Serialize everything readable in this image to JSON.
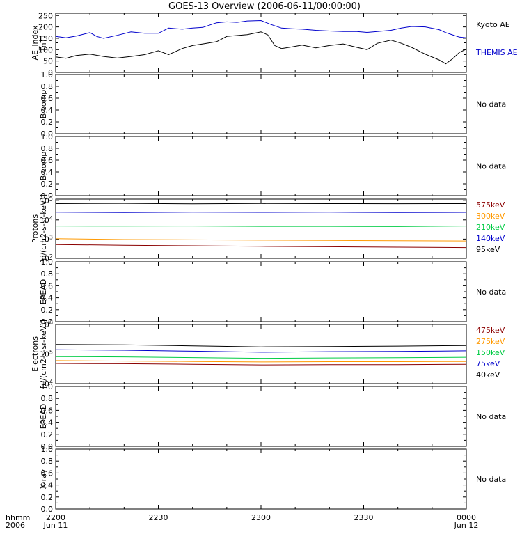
{
  "title": "GOES-13 Overview (2006-06-11/00:00:00)",
  "time_axis": {
    "ticks": [
      {
        "label": "2200",
        "sublabel": "Jun 11",
        "t": 0
      },
      {
        "label": "2230",
        "sublabel": "",
        "t": 30
      },
      {
        "label": "2300",
        "sublabel": "",
        "t": 60
      },
      {
        "label": "2330",
        "sublabel": "",
        "t": 90
      },
      {
        "label": "0000",
        "sublabel": "Jun 12",
        "t": 120
      }
    ],
    "left_caption_1": "hhmm",
    "left_caption_2": "2006",
    "range_minutes": [
      0,
      120
    ]
  },
  "chart_data": [
    {
      "type": "line",
      "ylabel_1": "AE_index",
      "ylabel_2": "[nT]",
      "yticks": [
        "0",
        "50",
        "100",
        "150",
        "200",
        "250"
      ],
      "ylim": [
        0,
        260
      ],
      "legend": [
        "Kyoto AE",
        "THEMIS AE"
      ],
      "legend_colors": [
        "#000000",
        "#0000cc"
      ],
      "series": [
        {
          "name": "Kyoto AE",
          "color": "#000000",
          "x": [
            0,
            3,
            6,
            10,
            14,
            18,
            22,
            26,
            30,
            33,
            37,
            40,
            43,
            47,
            50,
            53,
            56,
            60,
            62,
            64,
            66,
            69,
            72,
            76,
            80,
            84,
            88,
            91,
            94,
            98,
            101,
            104,
            108,
            112,
            114,
            116,
            118,
            120
          ],
          "y": [
            68,
            62,
            74,
            80,
            70,
            63,
            70,
            78,
            95,
            78,
            105,
            118,
            125,
            135,
            158,
            162,
            166,
            178,
            165,
            118,
            105,
            112,
            120,
            108,
            118,
            125,
            110,
            100,
            128,
            142,
            128,
            110,
            80,
            55,
            38,
            60,
            88,
            102
          ]
        },
        {
          "name": "THEMIS AE",
          "color": "#0000cc",
          "x": [
            0,
            3,
            6,
            10,
            12,
            14,
            18,
            22,
            26,
            30,
            33,
            37,
            40,
            43,
            47,
            50,
            53,
            56,
            60,
            63,
            66,
            69,
            72,
            76,
            80,
            84,
            88,
            91,
            94,
            98,
            101,
            104,
            108,
            112,
            114,
            116,
            118,
            120
          ],
          "y": [
            158,
            152,
            160,
            175,
            158,
            150,
            163,
            178,
            172,
            172,
            195,
            190,
            195,
            198,
            218,
            222,
            220,
            226,
            228,
            210,
            195,
            192,
            190,
            185,
            182,
            180,
            180,
            176,
            180,
            185,
            195,
            202,
            200,
            188,
            175,
            165,
            155,
            152
          ]
        }
      ]
    },
    {
      "type": "line",
      "ylabel_1": "B comp",
      "ylabel_2": "",
      "yticks": [
        "0.0",
        "0.2",
        "0.4",
        "0.6",
        "0.8",
        "1.0"
      ],
      "ylim": [
        0,
        1
      ],
      "note": "No data",
      "series": []
    },
    {
      "type": "line",
      "ylabel_1": "B comp",
      "ylabel_2": "",
      "yticks": [
        "0.0",
        "0.2",
        "0.4",
        "0.6",
        "0.8",
        "1.0"
      ],
      "ylim": [
        0,
        1
      ],
      "note": "No data",
      "series": []
    },
    {
      "type": "line",
      "ylabel_1": "Protons",
      "ylabel_2": "[p/(cm2-s-sr-keV)]",
      "scale": "log",
      "yticks": [
        "10^2",
        "10^3",
        "10^4",
        "10^5"
      ],
      "ylim": [
        100,
        120000
      ],
      "legend": [
        "575keV",
        "300keV",
        "210keV",
        "140keV",
        "95keV"
      ],
      "legend_colors": [
        "#8b0000",
        "#ff9900",
        "#00cc44",
        "#0000cc",
        "#000000"
      ],
      "series": [
        {
          "name": "95keV",
          "color": "#000000",
          "x": [
            0,
            20,
            40,
            60,
            80,
            100,
            120
          ],
          "y": [
            70000,
            72000,
            68000,
            71000,
            70000,
            69000,
            70000
          ]
        },
        {
          "name": "140keV",
          "color": "#0000cc",
          "x": [
            0,
            20,
            40,
            60,
            80,
            100,
            120
          ],
          "y": [
            25000,
            24000,
            25000,
            24500,
            25000,
            24000,
            24500
          ]
        },
        {
          "name": "210keV",
          "color": "#00cc44",
          "x": [
            0,
            20,
            40,
            60,
            80,
            100,
            120
          ],
          "y": [
            4800,
            4700,
            4800,
            4600,
            4600,
            4500,
            4800
          ]
        },
        {
          "name": "300keV",
          "color": "#ff9900",
          "x": [
            0,
            20,
            40,
            60,
            80,
            100,
            120
          ],
          "y": [
            1050,
            950,
            920,
            880,
            850,
            820,
            800
          ]
        },
        {
          "name": "575keV",
          "color": "#8b0000",
          "x": [
            0,
            20,
            40,
            60,
            80,
            100,
            120
          ],
          "y": [
            520,
            480,
            450,
            420,
            400,
            380,
            360
          ]
        }
      ]
    },
    {
      "type": "line",
      "ylabel_1": "EPEAD",
      "ylabel_2": "",
      "yticks": [
        "0.0",
        "0.2",
        "0.4",
        "0.6",
        "0.8",
        "1.0"
      ],
      "ylim": [
        0,
        1
      ],
      "note": "No data",
      "series": []
    },
    {
      "type": "line",
      "ylabel_1": "Electrons",
      "ylabel_2": "[e/(cm2-s-sr-keV)]",
      "scale": "log",
      "yticks": [
        "10^4",
        "10^5",
        "10^6"
      ],
      "ylim": [
        10000,
        1000000
      ],
      "legend": [
        "475keV",
        "275keV",
        "150keV",
        "75keV",
        "40keV"
      ],
      "legend_colors": [
        "#8b0000",
        "#ff9900",
        "#00cc44",
        "#0000cc",
        "#000000"
      ],
      "series": [
        {
          "name": "40keV",
          "color": "#000000",
          "x": [
            0,
            20,
            40,
            60,
            80,
            100,
            120
          ],
          "y": [
            210000,
            205000,
            190000,
            175000,
            180000,
            185000,
            195000
          ]
        },
        {
          "name": "75keV",
          "color": "#0000cc",
          "x": [
            0,
            20,
            40,
            60,
            80,
            100,
            120
          ],
          "y": [
            140000,
            135000,
            125000,
            115000,
            120000,
            122000,
            128000
          ]
        },
        {
          "name": "150keV",
          "color": "#00cc44",
          "x": [
            0,
            20,
            40,
            60,
            80,
            100,
            120
          ],
          "y": [
            82000,
            80000,
            76000,
            72000,
            74000,
            75000,
            78000
          ]
        },
        {
          "name": "275keV",
          "color": "#ff9900",
          "x": [
            0,
            20,
            40,
            60,
            80,
            100,
            120
          ],
          "y": [
            60000,
            58000,
            56000,
            54000,
            55000,
            55000,
            56000
          ]
        },
        {
          "name": "475keV",
          "color": "#8b0000",
          "x": [
            0,
            20,
            40,
            60,
            80,
            100,
            120
          ],
          "y": [
            48000,
            47000,
            45000,
            43000,
            44000,
            44000,
            45000
          ]
        }
      ]
    },
    {
      "type": "line",
      "ylabel_1": "EPEAD",
      "ylabel_2": "",
      "yticks": [
        "0.0",
        "0.2",
        "0.4",
        "0.6",
        "0.8",
        "1.0"
      ],
      "ylim": [
        0,
        1
      ],
      "note": "No data",
      "series": []
    },
    {
      "type": "line",
      "ylabel_1": "X-ray",
      "ylabel_2": "",
      "yticks": [
        "0.0",
        "0.2",
        "0.4",
        "0.6",
        "0.8",
        "1.0"
      ],
      "ylim": [
        0,
        1
      ],
      "note": "No data",
      "series": []
    }
  ]
}
